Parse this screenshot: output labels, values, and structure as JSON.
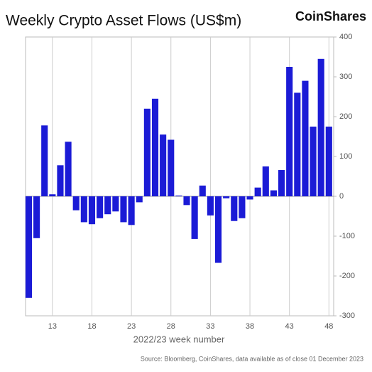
{
  "chart_data": {
    "type": "bar",
    "title": "Weekly Crypto Asset Flows (US$m)",
    "brand": "CoinShares",
    "x_label": "2022/23 week number",
    "source": "Source: Bloomberg, CoinShares, data available as of close 01 December 2023",
    "x": [
      10,
      11,
      12,
      13,
      14,
      15,
      16,
      17,
      18,
      19,
      20,
      21,
      22,
      23,
      24,
      25,
      26,
      27,
      28,
      29,
      30,
      31,
      32,
      33,
      34,
      35,
      36,
      37,
      38,
      39,
      40,
      41,
      42,
      43,
      44,
      45,
      46,
      47,
      48
    ],
    "values": [
      -255,
      -105,
      178,
      5,
      78,
      137,
      -35,
      -65,
      -70,
      -55,
      -45,
      -38,
      -65,
      -72,
      -15,
      220,
      245,
      155,
      142,
      2,
      -22,
      -107,
      27,
      -48,
      -167,
      -5,
      -62,
      -55,
      -8,
      22,
      75,
      15,
      66,
      325,
      260,
      290,
      175,
      345,
      175
    ],
    "color": "#1b1bd6",
    "xlim": [
      9.6,
      48.6
    ],
    "xticks": [
      13,
      18,
      23,
      28,
      33,
      38,
      43,
      48
    ],
    "ylim": [
      -300,
      400
    ],
    "yticks": [
      -300,
      -200,
      -100,
      0,
      100,
      200,
      300,
      400
    ],
    "grid": true
  }
}
